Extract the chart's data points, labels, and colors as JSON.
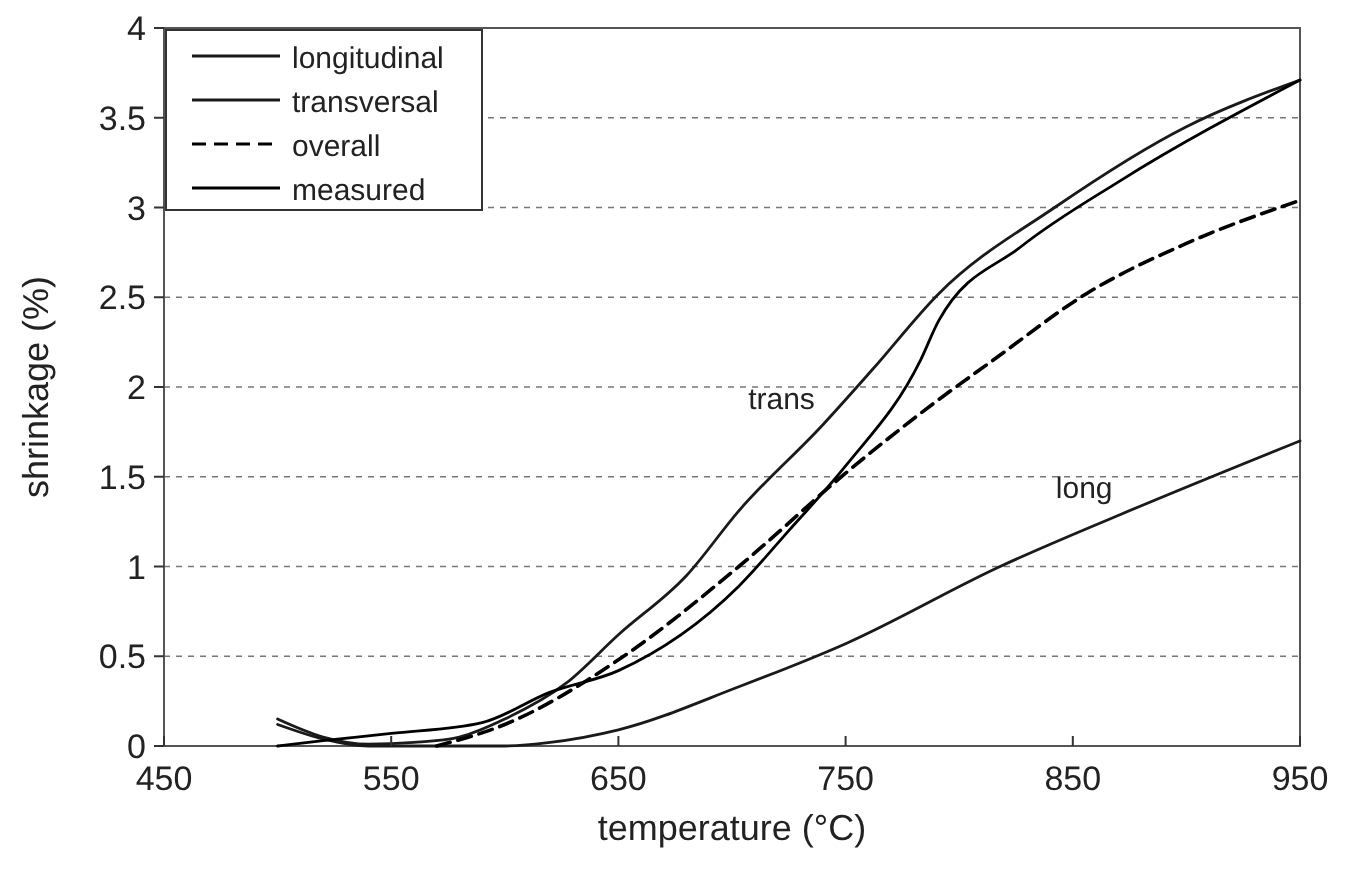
{
  "chart_data": {
    "type": "line",
    "xlabel": "temperature (°C)",
    "ylabel": "shrinkage (%)",
    "xlim": [
      450,
      950
    ],
    "xticks": [
      450,
      550,
      650,
      750,
      850,
      950
    ],
    "ylim": [
      0,
      4
    ],
    "yticks": [
      0,
      0.5,
      1,
      1.5,
      2,
      2.5,
      3,
      3.5,
      4
    ],
    "grid": "y",
    "legend": "top left",
    "marker": "none",
    "series": [
      {
        "name": "longitudinal",
        "color": "#1a1a1a",
        "line_style": "solid",
        "x": [
          500,
          520,
          540,
          600,
          620,
          650,
          703,
          750,
          818,
          871,
          950
        ],
        "values": [
          0.12,
          0.04,
          0,
          0,
          0.02,
          0.09,
          0.33,
          0.57,
          1.0,
          1.29,
          1.7
        ]
      },
      {
        "name": "transversal",
        "color": "#1a1a1a",
        "line_style": "solid",
        "x": [
          500,
          520,
          540,
          560,
          580,
          600,
          627,
          650,
          680,
          703,
          740,
          762,
          791,
          842,
          900,
          950
        ],
        "values": [
          0.15,
          0.05,
          0.01,
          0.02,
          0.05,
          0.15,
          0.35,
          0.62,
          0.95,
          1.31,
          1.79,
          2.1,
          2.52,
          3.0,
          3.45,
          3.71
        ]
      },
      {
        "name": "overall",
        "color": "#000000",
        "line_style": "dashed",
        "x": [
          570,
          600,
          650,
          703,
          750,
          791,
          815,
          856,
          900,
          950
        ],
        "values": [
          0,
          0.12,
          0.48,
          1.0,
          1.52,
          1.93,
          2.15,
          2.52,
          2.8,
          3.04
        ]
      },
      {
        "name": "measured",
        "color": "#000000",
        "line_style": "solid",
        "x": [
          500,
          520,
          550,
          590,
          620,
          650,
          703,
          725,
          750,
          783,
          791,
          827,
          871,
          950
        ],
        "values": [
          0,
          0.03,
          0.07,
          0.13,
          0.3,
          0.42,
          0.89,
          1.2,
          1.56,
          2.15,
          2.37,
          2.78,
          3.15,
          3.71
        ]
      }
    ],
    "annotations": [
      {
        "text": "trans",
        "x": 740,
        "y": 1.79
      },
      {
        "text": "long",
        "x": 871,
        "y": 1.29
      }
    ]
  }
}
